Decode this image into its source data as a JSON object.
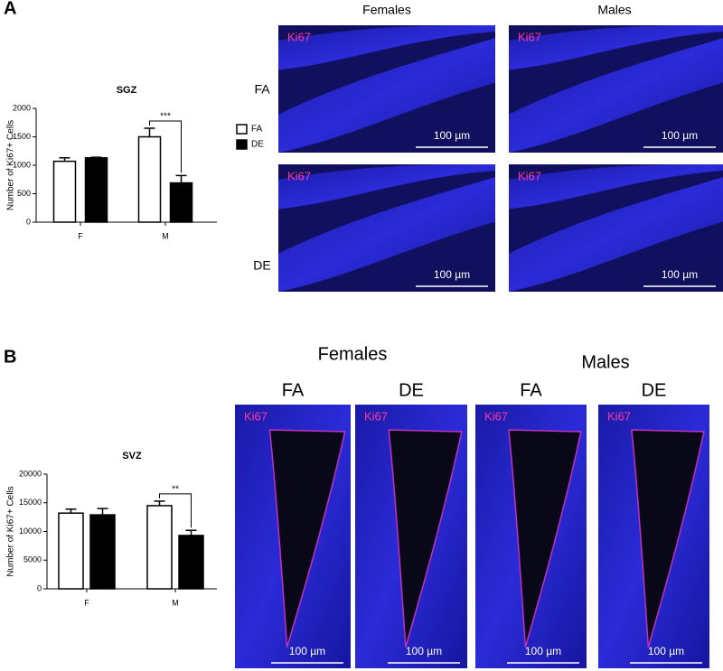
{
  "chart_data": [
    {
      "type": "bar",
      "title": "SGZ",
      "y_label": "Number of Ki67+ Cells",
      "categories": [
        "F",
        "M"
      ],
      "series": [
        {
          "name": "FA",
          "color": "#ffffff",
          "values": [
            1070,
            1500
          ],
          "errors": [
            60,
            150
          ]
        },
        {
          "name": "DE",
          "color": "#000000",
          "values": [
            1130,
            690
          ],
          "errors": [
            10,
            130
          ]
        }
      ],
      "ylim": [
        0,
        2000
      ],
      "yticks": [
        0,
        500,
        1000,
        1500,
        2000
      ],
      "annotation": "***",
      "legend": "top-right"
    },
    {
      "type": "bar",
      "title": "SVZ",
      "y_label": "Number of Ki67+ Cells",
      "categories": [
        "F",
        "M"
      ],
      "series": [
        {
          "name": "FA",
          "color": "#ffffff",
          "values": [
            13200,
            14500
          ],
          "errors": [
            700,
            800
          ]
        },
        {
          "name": "DE",
          "color": "#000000",
          "values": [
            12900,
            9300
          ],
          "errors": [
            1100,
            900
          ]
        }
      ],
      "ylim": [
        0,
        20000
      ],
      "yticks": [
        0,
        5000,
        10000,
        15000,
        20000
      ],
      "annotation": "**"
    }
  ],
  "figure": {
    "panel_a": {
      "label": "A",
      "columns": [
        "Females",
        "Males"
      ],
      "rows": [
        "FA",
        "DE"
      ],
      "images": [
        {
          "stain": "Ki67",
          "scale": "100 µm"
        },
        {
          "stain": "Ki67",
          "scale": "100 µm"
        },
        {
          "stain": "Ki67",
          "scale": "100 µm"
        },
        {
          "stain": "Ki67",
          "scale": "100 µm"
        }
      ]
    },
    "panel_b": {
      "label": "B",
      "columns": [
        "Females",
        "Males"
      ],
      "subcolumns": [
        "FA",
        "DE",
        "FA",
        "DE"
      ],
      "images": [
        {
          "stain": "Ki67",
          "scale": "100 µm"
        },
        {
          "stain": "Ki67",
          "scale": "100 µm"
        },
        {
          "stain": "Ki67",
          "scale": "100 µm"
        },
        {
          "stain": "Ki67",
          "scale": "100 µm"
        }
      ]
    }
  }
}
